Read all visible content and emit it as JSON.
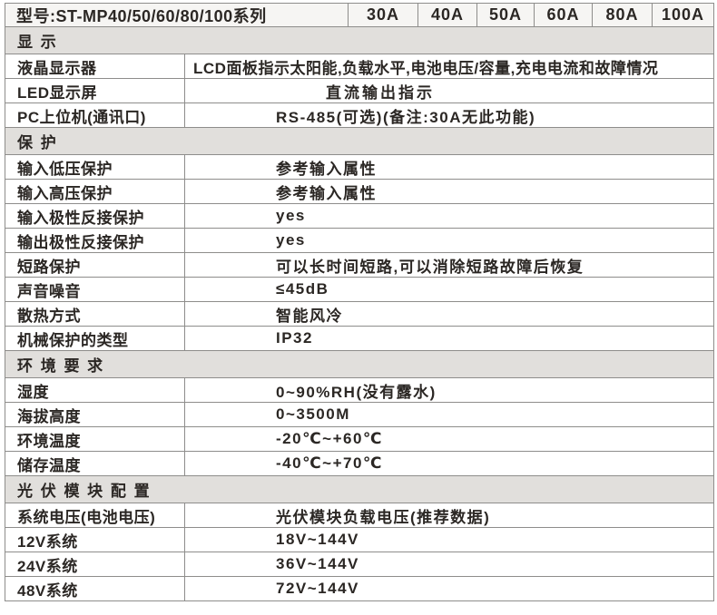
{
  "colors": {
    "text": "#2b2724",
    "border": "#8e8d8b",
    "section_band_bg": "#e1dfdc",
    "header_row_bg": "#f6f5f3",
    "row_bg": "#ffffff"
  },
  "header": {
    "model_label": "型号:ST-MP40/50/60/80/100系列",
    "current_ratings": [
      "30A",
      "40A",
      "50A",
      "60A",
      "80A",
      "100A"
    ]
  },
  "sections": [
    {
      "title": "显 示",
      "rows": [
        {
          "label": "液晶显示器",
          "value": "LCD面板指示太阳能,负载水平,电池电压/容量,充电电流和故障情况",
          "indent": "flush"
        },
        {
          "label": "LED显示屏",
          "value": "直流输出指示",
          "indent": "wide"
        },
        {
          "label": "PC上位机(通讯口)",
          "value": "RS-485(可选)(备注:30A无此功能)",
          "indent": "normal"
        }
      ]
    },
    {
      "title": "保 护",
      "rows": [
        {
          "label": "输入低压保护",
          "value": "参考输入属性",
          "indent": "normal"
        },
        {
          "label": "输入高压保护",
          "value": "参考输入属性",
          "indent": "normal"
        },
        {
          "label": "输入极性反接保护",
          "value": "yes",
          "indent": "normal"
        },
        {
          "label": "输出极性反接保护",
          "value": "yes",
          "indent": "normal"
        },
        {
          "label": "短路保护",
          "value": "可以长时间短路,可以消除短路故障后恢复",
          "indent": "normal"
        },
        {
          "label": "声音噪音",
          "value": "≤45dB",
          "indent": "normal"
        },
        {
          "label": "散热方式",
          "value": "智能风冷",
          "indent": "normal"
        },
        {
          "label": "机械保护的类型",
          "value": "IP32",
          "indent": "normal"
        }
      ]
    },
    {
      "title": "环 境 要 求",
      "rows": [
        {
          "label": "湿度",
          "value": "0~90%RH(没有露水)",
          "indent": "normal"
        },
        {
          "label": "海拔高度",
          "value": "0~3500M",
          "indent": "normal"
        },
        {
          "label": "环境温度",
          "value": "-20℃~+60℃",
          "indent": "normal"
        },
        {
          "label": "储存温度",
          "value": "-40℃~+70℃",
          "indent": "normal"
        }
      ]
    },
    {
      "title": "光 伏 模 块 配 置",
      "rows": [
        {
          "label": "系统电压(电池电压)",
          "value": "光伏模块负载电压(推荐数据)",
          "indent": "normal"
        },
        {
          "label": "12V系统",
          "value": "18V~144V",
          "indent": "normal"
        },
        {
          "label": "24V系统",
          "value": "36V~144V",
          "indent": "normal"
        },
        {
          "label": "48V系统",
          "value": "72V~144V",
          "indent": "normal"
        }
      ]
    }
  ]
}
